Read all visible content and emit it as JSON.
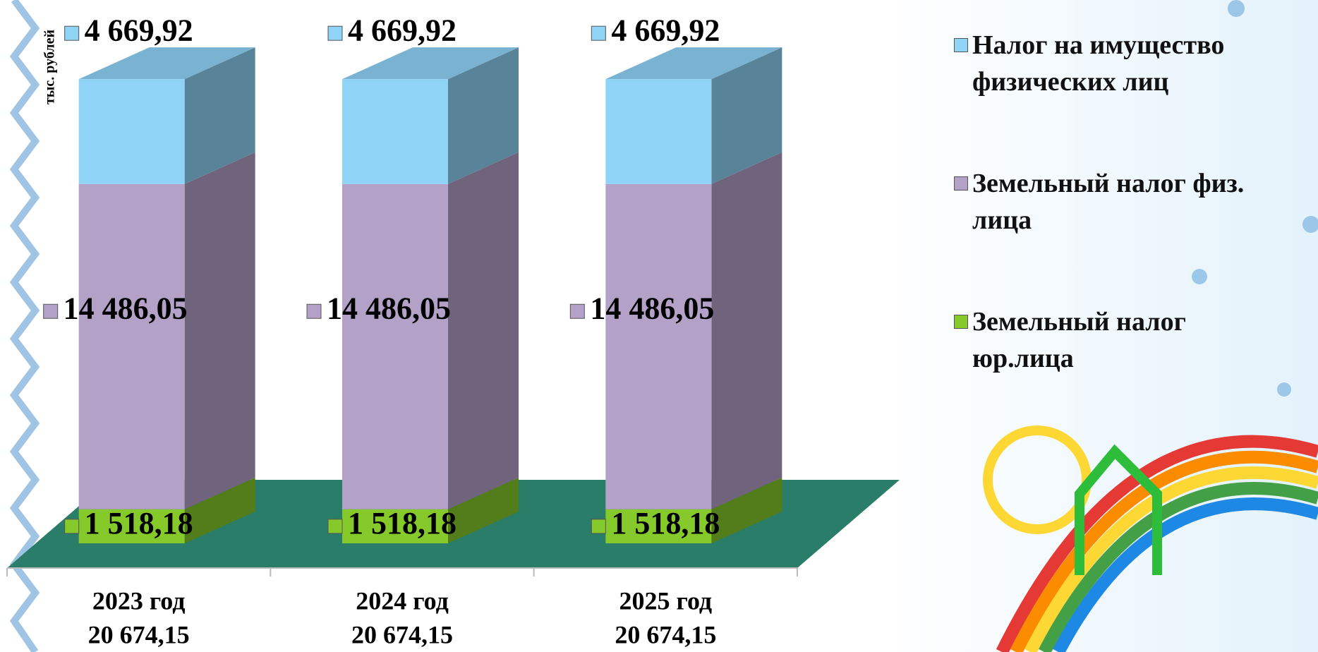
{
  "chart_data": {
    "type": "stacked-bar-3d",
    "y_label": "тыс. рублей",
    "categories": [
      "2023 год",
      "2024 год",
      "2025 год"
    ],
    "totals": [
      20674.15,
      20674.15,
      20674.15
    ],
    "total_labels": [
      "20 674,15",
      "20 674,15",
      "20 674,15"
    ],
    "ylim": [
      0,
      22000
    ],
    "series": [
      {
        "name": "Налог на имущество физических лиц",
        "color": "#8fd3f7",
        "values": [
          4669.92,
          4669.92,
          4669.92
        ],
        "value_labels": [
          "4 669,92",
          "4 669,92",
          "4 669,92"
        ]
      },
      {
        "name": "Земельный налог физ. лица",
        "color": "#b3a1c8",
        "values": [
          14486.05,
          14486.05,
          14486.05
        ],
        "value_labels": [
          "14 486,05",
          "14 486,05",
          "14 486,05"
        ]
      },
      {
        "name": "Земельный налог юр.лица",
        "color": "#86c92a",
        "values": [
          1518.18,
          1518.18,
          1518.18
        ],
        "value_labels": [
          "1 518,18",
          "1 518,18",
          "1 518,18"
        ]
      }
    ]
  }
}
